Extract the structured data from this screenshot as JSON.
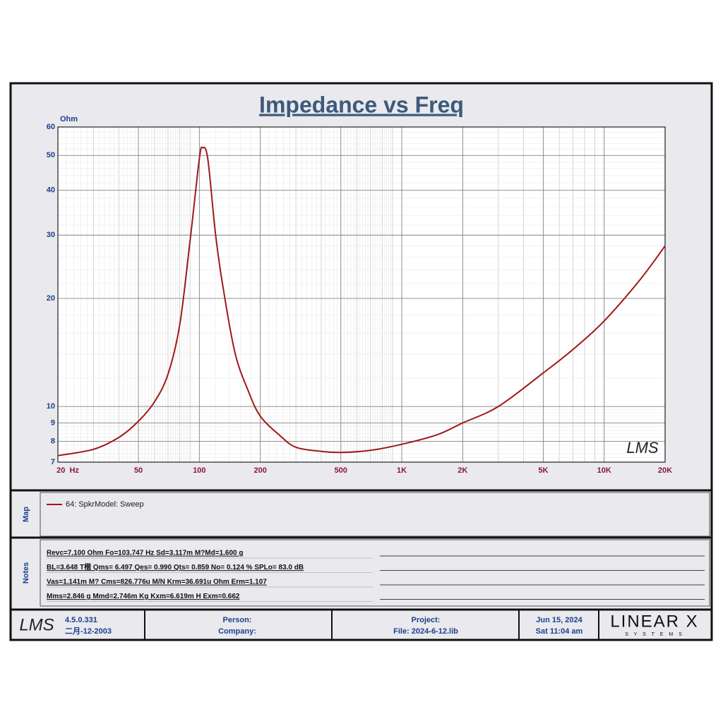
{
  "chart_data": {
    "type": "line",
    "title": "Impedance vs Freq",
    "y_unit": "Ohm",
    "log_x": true,
    "log_y": true,
    "grid": true,
    "minor_grid": true,
    "xlim": [
      20,
      20000
    ],
    "ylim": [
      7,
      60
    ],
    "xticks": [
      {
        "value": 20,
        "label": "20  Hz"
      },
      50,
      100,
      200,
      500,
      {
        "value": 1000,
        "label": "1K"
      },
      {
        "value": 2000,
        "label": "2K"
      },
      {
        "value": 5000,
        "label": "5K"
      },
      {
        "value": 10000,
        "label": "10K"
      },
      {
        "value": 20000,
        "label": "20K"
      }
    ],
    "yticks": [
      7,
      8,
      9,
      10,
      20,
      30,
      40,
      50,
      60
    ],
    "watermark": "LMS",
    "series": [
      {
        "name": "64: SpkrModel: Sweep",
        "color": "#a01818",
        "x": [
          20,
          30,
          40,
          50,
          60,
          70,
          80,
          90,
          100,
          103.747,
          110,
          120,
          130,
          150,
          175,
          200,
          250,
          300,
          400,
          500,
          700,
          1000,
          1500,
          2000,
          3000,
          5000,
          7000,
          10000,
          15000,
          20000
        ],
        "values": [
          7.3,
          7.6,
          8.2,
          9.1,
          10.3,
          12.3,
          16.9,
          29,
          49,
          52.5,
          49,
          30.4,
          22,
          14.1,
          11,
          9.4,
          8.3,
          7.7,
          7.5,
          7.45,
          7.55,
          7.85,
          8.35,
          9.0,
          10.0,
          12.4,
          14.4,
          17.3,
          22.5,
          28
        ]
      }
    ]
  },
  "map": {
    "label": "Map"
  },
  "notes": {
    "label": "Notes",
    "lines": [
      "Revc=7.100 Ohm  Fo=103.747 Hz  Sd=3.117m M?Md=1.600 g",
      "BL=3.648 T楷  Qms= 6.497  Qes= 0.990  Qts= 0.859  No= 0.124 %  SPLo= 83.0 dB",
      "Vas=1.141m M? Cms=826.776u M/N  Krm=36.691u Ohm  Erm=1.107",
      "Mms=2.846 g  Mmd=2.746m Kg  Kxm=6.619m H  Exm=0.662"
    ]
  },
  "footer": {
    "logo": "LMS",
    "version": "4.5.0.331",
    "build_date": "二月-12-2003",
    "person": "Person:",
    "company": "Company:",
    "project": "Project:",
    "file": "File: 2024-6-12.lib",
    "date": "Jun 15, 2024",
    "time": "Sat 11:04 am",
    "brand": "LINEAR X",
    "brand_sub": "S Y S T E M S"
  }
}
